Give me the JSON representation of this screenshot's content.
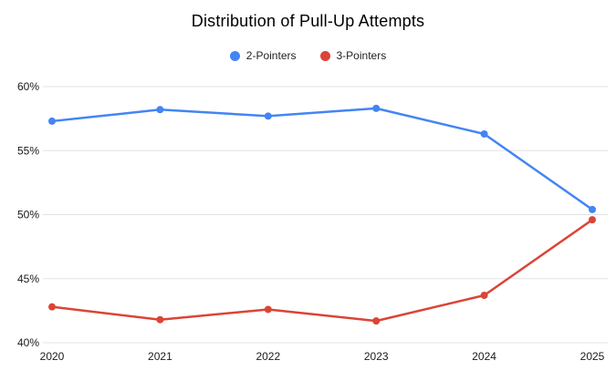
{
  "chart_data": {
    "type": "line",
    "title": "Distribution of Pull-Up Attempts",
    "categories": [
      "2020",
      "2021",
      "2022",
      "2023",
      "2024",
      "2025"
    ],
    "series": [
      {
        "name": "2-Pointers",
        "color": "#4285F4",
        "values": [
          57.3,
          58.2,
          57.7,
          58.3,
          56.3,
          50.4
        ]
      },
      {
        "name": "3-Pointers",
        "color": "#DB4437",
        "values": [
          42.8,
          41.8,
          42.6,
          41.7,
          43.7,
          49.6
        ]
      }
    ],
    "y_axis": {
      "min": 40,
      "max": 60,
      "tick_step": 5,
      "tick_labels": [
        "40%",
        "45%",
        "50%",
        "55%",
        "60%"
      ],
      "format": "percent"
    },
    "x_axis": {
      "tick_labels": [
        "2020",
        "2021",
        "2022",
        "2023",
        "2024",
        "2025"
      ]
    },
    "legend_position": "top",
    "grid": true,
    "gridline_color": "#E3E3E3",
    "background_color": "#FFFFFF",
    "axis_label_color": "#1a1a1a"
  }
}
